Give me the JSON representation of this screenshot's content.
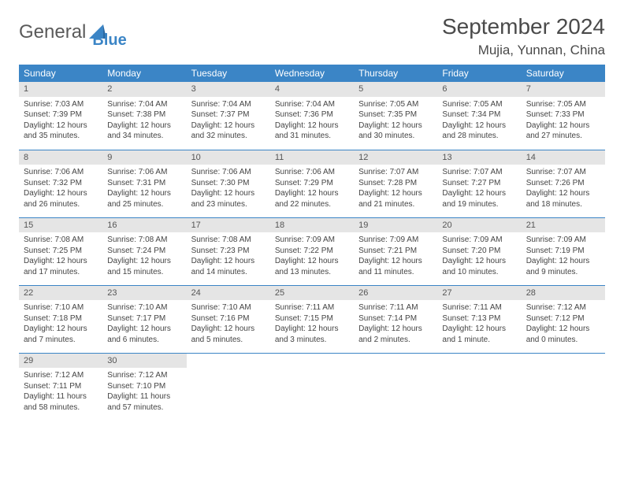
{
  "brand": {
    "part1": "General",
    "part2": "Blue"
  },
  "title": "September 2024",
  "location": "Mujia, Yunnan, China",
  "colors": {
    "header_bg": "#3b85c6",
    "header_text": "#ffffff",
    "daynum_bg": "#e5e5e5",
    "border": "#3b85c6",
    "text": "#444444",
    "title_text": "#4a4a4a"
  },
  "weekdays": [
    "Sunday",
    "Monday",
    "Tuesday",
    "Wednesday",
    "Thursday",
    "Friday",
    "Saturday"
  ],
  "weeks": [
    [
      {
        "n": "1",
        "sr": "Sunrise: 7:03 AM",
        "ss": "Sunset: 7:39 PM",
        "d1": "Daylight: 12 hours",
        "d2": "and 35 minutes."
      },
      {
        "n": "2",
        "sr": "Sunrise: 7:04 AM",
        "ss": "Sunset: 7:38 PM",
        "d1": "Daylight: 12 hours",
        "d2": "and 34 minutes."
      },
      {
        "n": "3",
        "sr": "Sunrise: 7:04 AM",
        "ss": "Sunset: 7:37 PM",
        "d1": "Daylight: 12 hours",
        "d2": "and 32 minutes."
      },
      {
        "n": "4",
        "sr": "Sunrise: 7:04 AM",
        "ss": "Sunset: 7:36 PM",
        "d1": "Daylight: 12 hours",
        "d2": "and 31 minutes."
      },
      {
        "n": "5",
        "sr": "Sunrise: 7:05 AM",
        "ss": "Sunset: 7:35 PM",
        "d1": "Daylight: 12 hours",
        "d2": "and 30 minutes."
      },
      {
        "n": "6",
        "sr": "Sunrise: 7:05 AM",
        "ss": "Sunset: 7:34 PM",
        "d1": "Daylight: 12 hours",
        "d2": "and 28 minutes."
      },
      {
        "n": "7",
        "sr": "Sunrise: 7:05 AM",
        "ss": "Sunset: 7:33 PM",
        "d1": "Daylight: 12 hours",
        "d2": "and 27 minutes."
      }
    ],
    [
      {
        "n": "8",
        "sr": "Sunrise: 7:06 AM",
        "ss": "Sunset: 7:32 PM",
        "d1": "Daylight: 12 hours",
        "d2": "and 26 minutes."
      },
      {
        "n": "9",
        "sr": "Sunrise: 7:06 AM",
        "ss": "Sunset: 7:31 PM",
        "d1": "Daylight: 12 hours",
        "d2": "and 25 minutes."
      },
      {
        "n": "10",
        "sr": "Sunrise: 7:06 AM",
        "ss": "Sunset: 7:30 PM",
        "d1": "Daylight: 12 hours",
        "d2": "and 23 minutes."
      },
      {
        "n": "11",
        "sr": "Sunrise: 7:06 AM",
        "ss": "Sunset: 7:29 PM",
        "d1": "Daylight: 12 hours",
        "d2": "and 22 minutes."
      },
      {
        "n": "12",
        "sr": "Sunrise: 7:07 AM",
        "ss": "Sunset: 7:28 PM",
        "d1": "Daylight: 12 hours",
        "d2": "and 21 minutes."
      },
      {
        "n": "13",
        "sr": "Sunrise: 7:07 AM",
        "ss": "Sunset: 7:27 PM",
        "d1": "Daylight: 12 hours",
        "d2": "and 19 minutes."
      },
      {
        "n": "14",
        "sr": "Sunrise: 7:07 AM",
        "ss": "Sunset: 7:26 PM",
        "d1": "Daylight: 12 hours",
        "d2": "and 18 minutes."
      }
    ],
    [
      {
        "n": "15",
        "sr": "Sunrise: 7:08 AM",
        "ss": "Sunset: 7:25 PM",
        "d1": "Daylight: 12 hours",
        "d2": "and 17 minutes."
      },
      {
        "n": "16",
        "sr": "Sunrise: 7:08 AM",
        "ss": "Sunset: 7:24 PM",
        "d1": "Daylight: 12 hours",
        "d2": "and 15 minutes."
      },
      {
        "n": "17",
        "sr": "Sunrise: 7:08 AM",
        "ss": "Sunset: 7:23 PM",
        "d1": "Daylight: 12 hours",
        "d2": "and 14 minutes."
      },
      {
        "n": "18",
        "sr": "Sunrise: 7:09 AM",
        "ss": "Sunset: 7:22 PM",
        "d1": "Daylight: 12 hours",
        "d2": "and 13 minutes."
      },
      {
        "n": "19",
        "sr": "Sunrise: 7:09 AM",
        "ss": "Sunset: 7:21 PM",
        "d1": "Daylight: 12 hours",
        "d2": "and 11 minutes."
      },
      {
        "n": "20",
        "sr": "Sunrise: 7:09 AM",
        "ss": "Sunset: 7:20 PM",
        "d1": "Daylight: 12 hours",
        "d2": "and 10 minutes."
      },
      {
        "n": "21",
        "sr": "Sunrise: 7:09 AM",
        "ss": "Sunset: 7:19 PM",
        "d1": "Daylight: 12 hours",
        "d2": "and 9 minutes."
      }
    ],
    [
      {
        "n": "22",
        "sr": "Sunrise: 7:10 AM",
        "ss": "Sunset: 7:18 PM",
        "d1": "Daylight: 12 hours",
        "d2": "and 7 minutes."
      },
      {
        "n": "23",
        "sr": "Sunrise: 7:10 AM",
        "ss": "Sunset: 7:17 PM",
        "d1": "Daylight: 12 hours",
        "d2": "and 6 minutes."
      },
      {
        "n": "24",
        "sr": "Sunrise: 7:10 AM",
        "ss": "Sunset: 7:16 PM",
        "d1": "Daylight: 12 hours",
        "d2": "and 5 minutes."
      },
      {
        "n": "25",
        "sr": "Sunrise: 7:11 AM",
        "ss": "Sunset: 7:15 PM",
        "d1": "Daylight: 12 hours",
        "d2": "and 3 minutes."
      },
      {
        "n": "26",
        "sr": "Sunrise: 7:11 AM",
        "ss": "Sunset: 7:14 PM",
        "d1": "Daylight: 12 hours",
        "d2": "and 2 minutes."
      },
      {
        "n": "27",
        "sr": "Sunrise: 7:11 AM",
        "ss": "Sunset: 7:13 PM",
        "d1": "Daylight: 12 hours",
        "d2": "and 1 minute."
      },
      {
        "n": "28",
        "sr": "Sunrise: 7:12 AM",
        "ss": "Sunset: 7:12 PM",
        "d1": "Daylight: 12 hours",
        "d2": "and 0 minutes."
      }
    ],
    [
      {
        "n": "29",
        "sr": "Sunrise: 7:12 AM",
        "ss": "Sunset: 7:11 PM",
        "d1": "Daylight: 11 hours",
        "d2": "and 58 minutes."
      },
      {
        "n": "30",
        "sr": "Sunrise: 7:12 AM",
        "ss": "Sunset: 7:10 PM",
        "d1": "Daylight: 11 hours",
        "d2": "and 57 minutes."
      },
      null,
      null,
      null,
      null,
      null
    ]
  ]
}
